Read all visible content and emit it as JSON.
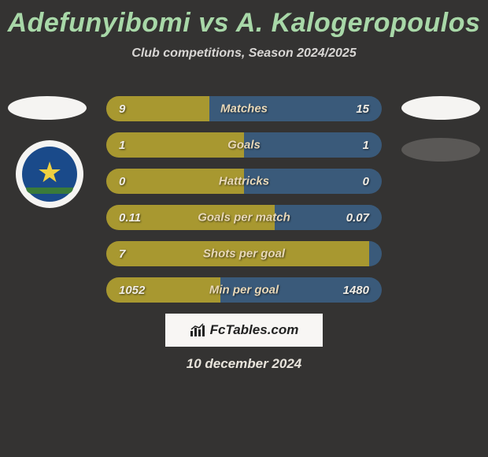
{
  "title": {
    "player1": "Adefunyibomi",
    "vs": "vs",
    "player2": "A. Kalogeropoulos",
    "color": "#a8d8a8"
  },
  "subtitle": "Club competitions, Season 2024/2025",
  "colors": {
    "left_bar": "#a89830",
    "right_bar": "#3a5a7a",
    "background": "#343332",
    "label": "#e8d8b8",
    "value": "#f0ece4"
  },
  "stats": [
    {
      "label": "Matches",
      "left_val": "9",
      "right_val": "15",
      "left_pct": 37.5
    },
    {
      "label": "Goals",
      "left_val": "1",
      "right_val": "1",
      "left_pct": 50.0
    },
    {
      "label": "Hattricks",
      "left_val": "0",
      "right_val": "0",
      "left_pct": 50.0
    },
    {
      "label": "Goals per match",
      "left_val": "0.11",
      "right_val": "0.07",
      "left_pct": 61.0
    },
    {
      "label": "Shots per goal",
      "left_val": "7",
      "right_val": "",
      "left_pct": 100.0
    },
    {
      "label": "Min per goal",
      "left_val": "1052",
      "right_val": "1480",
      "left_pct": 41.5
    }
  ],
  "branding": "FcTables.com",
  "date": "10 december 2024"
}
